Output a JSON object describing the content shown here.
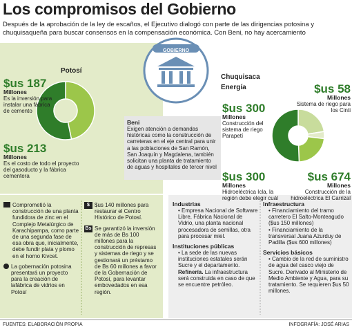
{
  "header": {
    "title": "Los compromisos del Gobierno",
    "subtitle": "Después de la aprobación de la ley de escaños, el Ejecutivo dialogó con parte de las dirigencias potosina y chuquisaqueña para buscar consensos en la compensación económica. Con Beni, no hay acercamiento"
  },
  "gobierno": "GOBIERNO",
  "potosi": {
    "title": "Potosí",
    "donut": {
      "cx": 95,
      "cy": 160,
      "r": 42,
      "inner": 17
    },
    "items": [
      {
        "amount": 187,
        "amount_label": "$us 187",
        "unit": "Millones",
        "text": "Es la inversión para instalar una fábrica de cemento",
        "color": "#9cc64a"
      },
      {
        "amount": 213,
        "amount_label": "$us 213",
        "unit": "Millones",
        "text": "Es el costo de todo el proyecto del gasoducto y la fábrica cementera",
        "color": "#2f7d2a"
      }
    ]
  },
  "beni": {
    "title": "Beni",
    "text": "Exigen atención a demandas históricas como la construcción de carreteras en el eje central para unir a las poblaciones de San Ramón, San Joaquín y Magdalena, también solicitan una planta de tratamiento de aguas y hospitales de tercer nivel"
  },
  "chuquisaca": {
    "title": "Chuquisaca",
    "subtitle": "Energía",
    "donut": {
      "cx": 432,
      "cy": 196,
      "r": 38,
      "inner": 14
    },
    "items": [
      {
        "amount": 300,
        "amount_label": "$us 300",
        "unit": "Millones",
        "text": "Construcción del sistema de riego Parapetí",
        "color": "#c8dc9c"
      },
      {
        "amount": 58,
        "amount_label": "$us 58",
        "unit": "Millones",
        "text": "Sistema de riego para los Cinti",
        "color": "#e3ebc9"
      },
      {
        "amount": 300,
        "amount_label": "$us 300",
        "unit": "Millones",
        "text": "Hidroeléctrica Icla, la región debe elegir cuál",
        "color": "#9cc64a"
      },
      {
        "amount": 674,
        "amount_label": "$us 674",
        "unit": "Millones",
        "text": "Construcción de la hidroeléctrica El Carrizal",
        "color": "#2f7d2a"
      }
    ]
  },
  "potosi_commitments": [
    [
      {
        "text": "Comprometió la construcción de una planta fundidora de zinc en el Complejo Metalúrgico de Karachipampa, como parte de una segunda fase de esa obra que, inicialmente, debe fundir plata y plomo en el horno Kivcet."
      },
      {
        "text": "La gobernación potosina presentará un proyecto para la creación de lafábrica de vidrios en Potosí"
      }
    ],
    [
      {
        "icon": "$",
        "text": "$us 140 millones para restaurar el Centro Histórico de Potosí."
      },
      {
        "icon": "Bs",
        "text": "Se garantizó la inversión de más de Bs 100 millones para la construcción de represas y sistemas de riego y se gestionará un préstamo de Bs 60 millones a favor de la Gobernación de Potosí, para levantar embovedados en esa región."
      }
    ]
  ],
  "chuquisaca_commitments": {
    "industrias": {
      "title": "Industrias",
      "items": [
        "• Empresa Nacional de Software Libre, Fábrica Nacional de Vidrio, una planta nacional procesadora de semillas, otra para procesar miel."
      ]
    },
    "instituciones": {
      "title": "Instituciones públicas",
      "items": [
        "• La sede de las nuevas instituciones estatales serán Sucre y el departamento."
      ],
      "refineria_title": "Refinería.",
      "refineria_text": "La infraestructura será construida en caso de que se encuentre petróleo."
    },
    "infraestructura": {
      "title": "Infraestructura",
      "items": [
        "• Financiamiento del tramo carretero El Salto-Monteagudo ($us 150 millones)",
        "• Financiamiento de la transversal Juana Azurduy de Padilla ($us 600 millones)"
      ]
    },
    "servicios": {
      "title": "Servicios básicos",
      "items": [
        "• Cambio de la red de suministro de agua del casco viejo de Sucre. Derivado al Ministerio de Medio Ambiente y Agua, para su tratamiento. Se requieren $us 50 millones."
      ]
    }
  },
  "footer": {
    "source": "FUENTES: ELABORACIÓN PROPIA",
    "credit": "INFOGRAFÍA: JOSÉ ARIAS"
  }
}
